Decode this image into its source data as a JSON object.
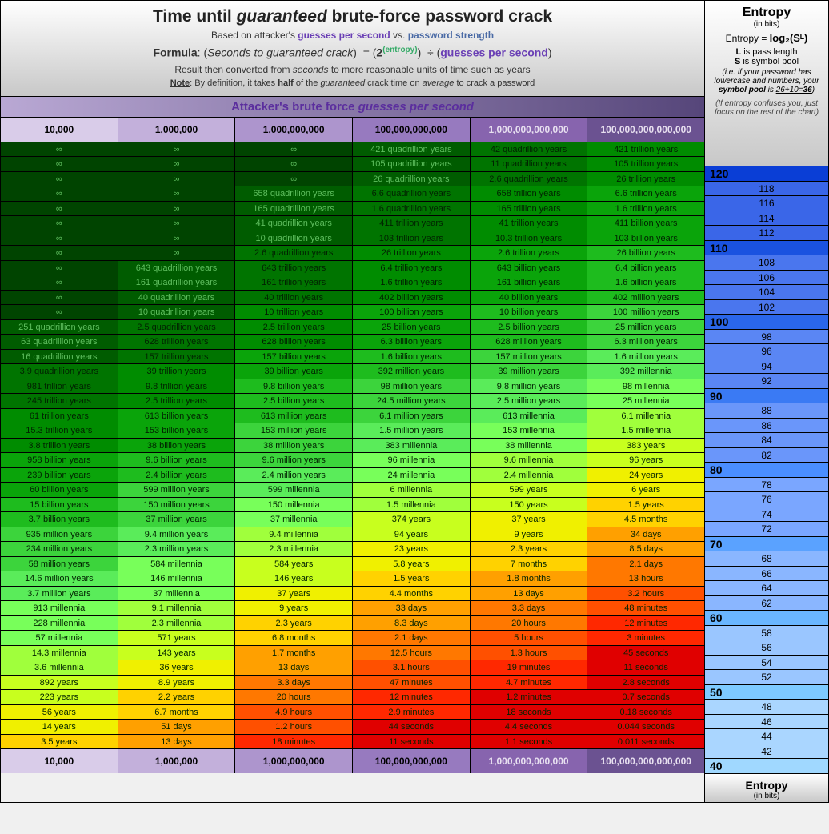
{
  "header": {
    "title_pre": "Time until ",
    "title_em": "guaranteed",
    "title_post": " brute-force password crack",
    "sub_pre": "Based on attacker's ",
    "sub_gps": "guesses per second",
    "sub_vs": " vs. ",
    "sub_ps": "password strength",
    "formula_label": "Formula",
    "formula_inner": "Seconds to guaranteed crack",
    "formula_entropy": "(entropy)",
    "formula_gps": "guesses per second",
    "result_line": "Result then converted from seconds to more reasonable units of time such as years",
    "result_seconds": "seconds",
    "note_label": "Note",
    "note_text_a": ": By definition, it takes ",
    "note_half": "half",
    "note_text_b": " of the ",
    "note_guar": "guaranteed",
    "note_text_c": " crack time on ",
    "note_avg": "average",
    "note_text_d": " to crack a password"
  },
  "gps_bar": {
    "pre": "Attacker's brute force ",
    "em": "guesses per second"
  },
  "entropy_panel": {
    "title": "Entropy",
    "bits": "(in bits)",
    "eq_pre": "Entropy = ",
    "eq": "log₂(Sᴸ)",
    "L_desc_b": "L",
    "L_desc": " is pass length",
    "S_desc_b": "S",
    "S_desc": " is symbol pool",
    "pool_desc": "(i.e. if your password has lowercase and numbers, your symbol pool is 26+10=36)",
    "pool_under": "36",
    "confuse": "(If entropy confuses you, just focus on the rest of the chart)",
    "footer_title": "Entropy",
    "footer_bits": "(in bits)"
  },
  "colors": {
    "col_head_bg": [
      "#d9cce9",
      "#c3b0db",
      "#ad95cd",
      "#977abf",
      "#8764ae",
      "#6b5291"
    ],
    "col_head_fg": [
      "#000",
      "#000",
      "#000",
      "#000",
      "#e8e0f0",
      "#e8e0f0"
    ],
    "entropy_gradient_milestone": [
      "#0a3ed6",
      "#1a52e0",
      "#2a66ea",
      "#3a7af4",
      "#4a8eff",
      "#5aa2ff",
      "#6ab6ff",
      "#7ecaff",
      "#a0d8ff"
    ],
    "entropy_normal_bg": [
      "#3a66e8",
      "#4a76ee",
      "#5a86f4",
      "#6a96fa",
      "#7aa6ff",
      "#8ab6ff",
      "#9ac6ff",
      "#aad6ff",
      "#c8e4ff"
    ],
    "heat_scale": [
      "#004400",
      "#005c00",
      "#007400",
      "#008c00",
      "#0aa40a",
      "#1ebc1e",
      "#3cd43c",
      "#5aec5a",
      "#78ff5a",
      "#a0ff3c",
      "#c8ff1e",
      "#f0f000",
      "#ffd200",
      "#ffa000",
      "#ff7800",
      "#ff5000",
      "#ff2800",
      "#e00000"
    ]
  },
  "columns": [
    "10,000",
    "1,000,000",
    "1,000,000,000",
    "100,000,000,000",
    "1,000,000,000,000",
    "100,000,000,000,000"
  ],
  "rows": [
    {
      "entropy": 120,
      "milestone": true,
      "vals": [
        "∞",
        "∞",
        "∞",
        "421 quadrillion years",
        "42 quadrillion years",
        "421 trillion years"
      ],
      "heat": [
        0,
        0,
        0,
        1,
        2,
        3
      ]
    },
    {
      "entropy": 118,
      "milestone": false,
      "vals": [
        "∞",
        "∞",
        "∞",
        "105 quadrillion years",
        "11 quadrillion years",
        "105 trillion years"
      ],
      "heat": [
        0,
        0,
        0,
        1,
        2,
        3
      ]
    },
    {
      "entropy": 116,
      "milestone": false,
      "vals": [
        "∞",
        "∞",
        "∞",
        "26 quadrillion years",
        "2.6 quadrillion years",
        "26 trillion years"
      ],
      "heat": [
        0,
        0,
        0,
        1,
        2,
        3
      ]
    },
    {
      "entropy": 114,
      "milestone": false,
      "vals": [
        "∞",
        "∞",
        "658 quadrillion years",
        "6.6 quadrillion years",
        "658 trillion years",
        "6.6 trillion years"
      ],
      "heat": [
        0,
        0,
        1,
        2,
        3,
        4
      ]
    },
    {
      "entropy": 112,
      "milestone": false,
      "vals": [
        "∞",
        "∞",
        "165 quadrillion years",
        "1.6 quadrillion years",
        "165 trillion years",
        "1.6 trillion years"
      ],
      "heat": [
        0,
        0,
        1,
        2,
        3,
        4
      ]
    },
    {
      "entropy": 110,
      "milestone": true,
      "vals": [
        "∞",
        "∞",
        "41 quadrillion years",
        "411 trillion years",
        "41 trillion years",
        "411 billion years"
      ],
      "heat": [
        0,
        0,
        1,
        2,
        3,
        4
      ]
    },
    {
      "entropy": 108,
      "milestone": false,
      "vals": [
        "∞",
        "∞",
        "10 quadrillion years",
        "103 trillion years",
        "10.3 trillion years",
        "103 billion years"
      ],
      "heat": [
        0,
        0,
        1,
        2,
        3,
        4
      ]
    },
    {
      "entropy": 106,
      "milestone": false,
      "vals": [
        "∞",
        "∞",
        "2.6 quadrillion years",
        "26 trillion years",
        "2.6 trillion years",
        "26 billion years"
      ],
      "heat": [
        0,
        0,
        2,
        3,
        4,
        5
      ]
    },
    {
      "entropy": 104,
      "milestone": false,
      "vals": [
        "∞",
        "643 quadrillion years",
        "643 trillion years",
        "6.4 trillion years",
        "643 billion years",
        "6.4 billion years"
      ],
      "heat": [
        0,
        1,
        2,
        3,
        4,
        5
      ]
    },
    {
      "entropy": 102,
      "milestone": false,
      "vals": [
        "∞",
        "161 quadrillion years",
        "161 trillion years",
        "1.6 trillion years",
        "161 billion years",
        "1.6 billion years"
      ],
      "heat": [
        0,
        1,
        2,
        3,
        4,
        5
      ]
    },
    {
      "entropy": 100,
      "milestone": true,
      "vals": [
        "∞",
        "40 quadrillion years",
        "40 trillion years",
        "402 billion years",
        "40 billion years",
        "402 million years"
      ],
      "heat": [
        0,
        1,
        2,
        3,
        4,
        5
      ]
    },
    {
      "entropy": 98,
      "milestone": false,
      "vals": [
        "∞",
        "10 quadrillion years",
        "10 trillion years",
        "100 billion years",
        "10 billion years",
        "100 million years"
      ],
      "heat": [
        0,
        1,
        3,
        4,
        5,
        6
      ]
    },
    {
      "entropy": 96,
      "milestone": false,
      "vals": [
        "251 quadrillion years",
        "2.5 quadrillion years",
        "2.5 trillion years",
        "25 billion years",
        "2.5 billion years",
        "25 million years"
      ],
      "heat": [
        1,
        2,
        3,
        4,
        5,
        6
      ]
    },
    {
      "entropy": 94,
      "milestone": false,
      "vals": [
        "63 quadrillion years",
        "628 trillion years",
        "628 billion years",
        "6.3 billion years",
        "628 million years",
        "6.3 million years"
      ],
      "heat": [
        1,
        2,
        3,
        4,
        5,
        6
      ]
    },
    {
      "entropy": 92,
      "milestone": false,
      "vals": [
        "16 quadrillion years",
        "157 trillion years",
        "157 billion years",
        "1.6 billion years",
        "157 million years",
        "1.6 million years"
      ],
      "heat": [
        1,
        2,
        4,
        5,
        6,
        7
      ]
    },
    {
      "entropy": 90,
      "milestone": true,
      "vals": [
        "3.9 quadrillion years",
        "39 trillion years",
        "39 billion years",
        "392 million years",
        "39 million years",
        "392 millennia"
      ],
      "heat": [
        2,
        3,
        4,
        5,
        6,
        7
      ]
    },
    {
      "entropy": 88,
      "milestone": false,
      "vals": [
        "981 trillion years",
        "9.8 trillion years",
        "9.8 billion years",
        "98 million years",
        "9.8 million years",
        "98 millennia"
      ],
      "heat": [
        2,
        3,
        5,
        6,
        7,
        8
      ]
    },
    {
      "entropy": 86,
      "milestone": false,
      "vals": [
        "245 trillion years",
        "2.5 trillion years",
        "2.5 billion years",
        "24.5 million years",
        "2.5 million years",
        "25 millennia"
      ],
      "heat": [
        2,
        3,
        5,
        6,
        7,
        8
      ]
    },
    {
      "entropy": 84,
      "milestone": false,
      "vals": [
        "61 trillion years",
        "613 billion years",
        "613 million years",
        "6.1 million years",
        "613 millennia",
        "6.1 millennia"
      ],
      "heat": [
        3,
        4,
        5,
        6,
        7,
        9
      ]
    },
    {
      "entropy": 82,
      "milestone": false,
      "vals": [
        "15.3 trillion years",
        "153 billion years",
        "153 million years",
        "1.5 million years",
        "153 millennia",
        "1.5 millennia"
      ],
      "heat": [
        3,
        4,
        6,
        7,
        8,
        9
      ]
    },
    {
      "entropy": 80,
      "milestone": true,
      "vals": [
        "3.8 trillion years",
        "38 billion years",
        "38 million years",
        "383 millennia",
        "38 millennia",
        "383 years"
      ],
      "heat": [
        3,
        4,
        6,
        7,
        8,
        10
      ]
    },
    {
      "entropy": 78,
      "milestone": false,
      "vals": [
        "958 billion years",
        "9.6 billion years",
        "9.6 million years",
        "96 millennia",
        "9.6 millennia",
        "96 years"
      ],
      "heat": [
        4,
        5,
        6,
        8,
        9,
        10
      ]
    },
    {
      "entropy": 76,
      "milestone": false,
      "vals": [
        "239 billion years",
        "2.4 billion years",
        "2.4 million years",
        "24 millennia",
        "2.4 millennia",
        "24 years"
      ],
      "heat": [
        4,
        5,
        7,
        8,
        9,
        11
      ]
    },
    {
      "entropy": 74,
      "milestone": false,
      "vals": [
        "60 billion years",
        "599 million years",
        "599 millennia",
        "6 millennia",
        "599 years",
        "6 years"
      ],
      "heat": [
        4,
        6,
        7,
        9,
        10,
        11
      ]
    },
    {
      "entropy": 72,
      "milestone": false,
      "vals": [
        "15 billion years",
        "150 million years",
        "150 millennia",
        "1.5 millennia",
        "150 years",
        "1.5 years"
      ],
      "heat": [
        5,
        6,
        8,
        9,
        10,
        12
      ]
    },
    {
      "entropy": 70,
      "milestone": true,
      "vals": [
        "3.7 billion years",
        "37 million years",
        "37 millennia",
        "374 years",
        "37 years",
        "4.5 months"
      ],
      "heat": [
        5,
        6,
        8,
        10,
        11,
        12
      ]
    },
    {
      "entropy": 68,
      "milestone": false,
      "vals": [
        "935 million years",
        "9.4 million years",
        "9.4 millennia",
        "94 years",
        "9 years",
        "34 days"
      ],
      "heat": [
        6,
        7,
        9,
        10,
        11,
        13
      ]
    },
    {
      "entropy": 66,
      "milestone": false,
      "vals": [
        "234 million years",
        "2.3 million years",
        "2.3 millennia",
        "23 years",
        "2.3 years",
        "8.5 days"
      ],
      "heat": [
        6,
        7,
        9,
        11,
        12,
        13
      ]
    },
    {
      "entropy": 64,
      "milestone": false,
      "vals": [
        "58 million years",
        "584 millennia",
        "584 years",
        "5.8 years",
        "7 months",
        "2.1 days"
      ],
      "heat": [
        6,
        8,
        10,
        11,
        12,
        14
      ]
    },
    {
      "entropy": 62,
      "milestone": false,
      "vals": [
        "14.6 million years",
        "146 millennia",
        "146 years",
        "1.5 years",
        "1.8 months",
        "13 hours"
      ],
      "heat": [
        7,
        8,
        10,
        12,
        13,
        14
      ]
    },
    {
      "entropy": 60,
      "milestone": true,
      "vals": [
        "3.7 million years",
        "37 millennia",
        "37 years",
        "4.4 months",
        "13 days",
        "3.2 hours"
      ],
      "heat": [
        7,
        8,
        11,
        12,
        13,
        15
      ]
    },
    {
      "entropy": 58,
      "milestone": false,
      "vals": [
        "913 millennia",
        "9.1 millennia",
        "9 years",
        "33 days",
        "3.3 days",
        "48 minutes"
      ],
      "heat": [
        8,
        9,
        11,
        13,
        14,
        15
      ]
    },
    {
      "entropy": 56,
      "milestone": false,
      "vals": [
        "228 millennia",
        "2.3 millennia",
        "2.3 years",
        "8.3 days",
        "20 hours",
        "12 minutes"
      ],
      "heat": [
        8,
        9,
        12,
        13,
        14,
        16
      ]
    },
    {
      "entropy": 54,
      "milestone": false,
      "vals": [
        "57 millennia",
        "571 years",
        "6.8 months",
        "2.1 days",
        "5 hours",
        "3 minutes"
      ],
      "heat": [
        8,
        10,
        12,
        14,
        15,
        16
      ]
    },
    {
      "entropy": 52,
      "milestone": false,
      "vals": [
        "14.3 millennia",
        "143 years",
        "1.7 months",
        "12.5 hours",
        "1.3 hours",
        "45 seconds"
      ],
      "heat": [
        9,
        10,
        13,
        14,
        15,
        17
      ]
    },
    {
      "entropy": 50,
      "milestone": true,
      "vals": [
        "3.6 millennia",
        "36 years",
        "13 days",
        "3.1 hours",
        "19 minutes",
        "11 seconds"
      ],
      "heat": [
        9,
        11,
        13,
        15,
        16,
        17
      ]
    },
    {
      "entropy": 48,
      "milestone": false,
      "vals": [
        "892 years",
        "8.9 years",
        "3.3 days",
        "47 minutes",
        "4.7 minutes",
        "2.8 seconds"
      ],
      "heat": [
        10,
        11,
        14,
        15,
        16,
        17
      ]
    },
    {
      "entropy": 46,
      "milestone": false,
      "vals": [
        "223 years",
        "2.2 years",
        "20 hours",
        "12 minutes",
        "1.2 minutes",
        "0.7 seconds"
      ],
      "heat": [
        10,
        12,
        14,
        16,
        17,
        17
      ]
    },
    {
      "entropy": 44,
      "milestone": false,
      "vals": [
        "56 years",
        "6.7 months",
        "4.9 hours",
        "2.9 minutes",
        "18 seconds",
        "0.18 seconds"
      ],
      "heat": [
        11,
        12,
        15,
        16,
        17,
        17
      ]
    },
    {
      "entropy": 42,
      "milestone": false,
      "vals": [
        "14 years",
        "51 days",
        "1.2 hours",
        "44 seconds",
        "4.4 seconds",
        "0.044 seconds"
      ],
      "heat": [
        11,
        13,
        15,
        17,
        17,
        17
      ]
    },
    {
      "entropy": 40,
      "milestone": true,
      "vals": [
        "3.5 years",
        "13 days",
        "18 minutes",
        "11 seconds",
        "1.1 seconds",
        "0.011 seconds"
      ],
      "heat": [
        12,
        13,
        16,
        17,
        17,
        17
      ]
    }
  ]
}
